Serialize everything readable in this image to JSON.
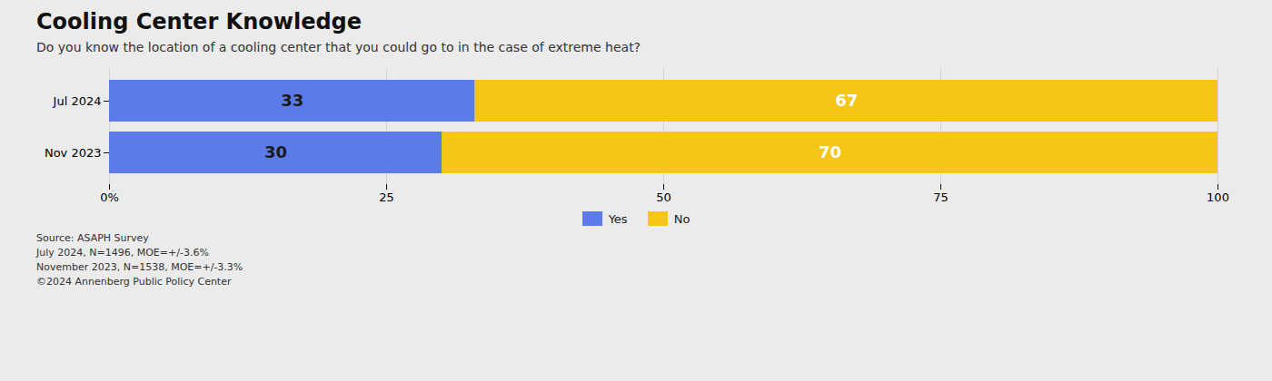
{
  "chart_data": {
    "type": "bar",
    "title": "Cooling Center Knowledge",
    "subtitle": "Do you know the location of a cooling center that you could go to in the case of extreme heat?",
    "categories": [
      "Jul 2024",
      "Nov 2023"
    ],
    "series": [
      {
        "name": "Yes",
        "color": "#5B7BE8",
        "values": [
          33,
          30
        ]
      },
      {
        "name": "No",
        "color": "#F5C518",
        "values": [
          67,
          70
        ]
      }
    ],
    "orientation": "horizontal",
    "stacked": true,
    "data_labels": true,
    "xlim": [
      0,
      100
    ],
    "xticks": [
      {
        "value": 0,
        "label": "0%"
      },
      25,
      50,
      75,
      100
    ],
    "grid": true,
    "legend": "bottom",
    "annotations": [
      "Source: ASAPH Survey",
      "July 2024, N=1496, MOE=+/-3.6%",
      "November 2023, N=1538, MOE=+/-3.3%",
      "©2024 Annenberg Public Policy Center"
    ]
  }
}
